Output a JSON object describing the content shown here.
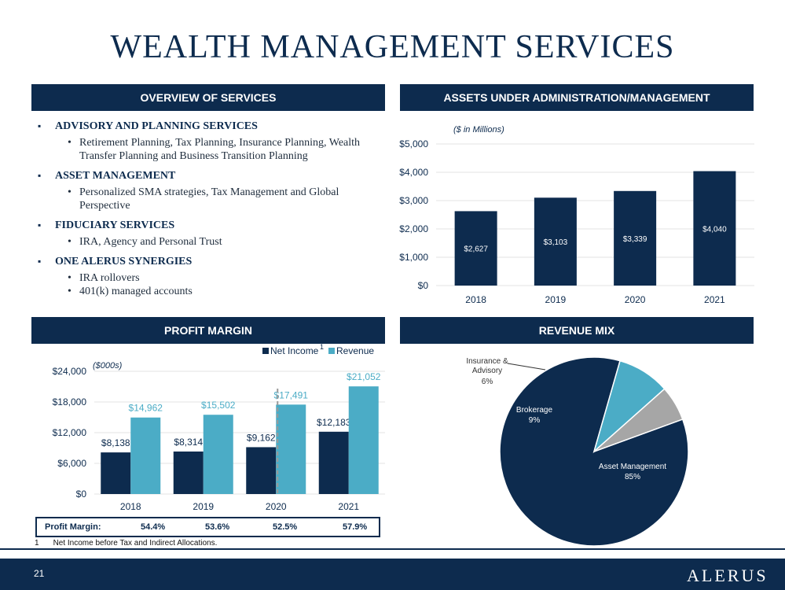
{
  "page": {
    "title": "WEALTH MANAGEMENT SERVICES",
    "page_number": "21",
    "logo": "ALERUS"
  },
  "headers": {
    "overview": "OVERVIEW OF SERVICES",
    "assets": "ASSETS UNDER ADMINISTRATION/MANAGEMENT",
    "profit": "PROFIT MARGIN",
    "revenue_mix": "REVENUE MIX"
  },
  "services": [
    {
      "heading": "ADVISORY AND PLANNING SERVICES",
      "items": [
        "Retirement Planning, Tax Planning, Insurance Planning, Wealth Transfer Planning and Business Transition Planning"
      ]
    },
    {
      "heading": "ASSET MANAGEMENT",
      "items": [
        "Personalized SMA strategies, Tax Management and Global Perspective"
      ]
    },
    {
      "heading": "FIDUCIARY SERVICES",
      "items": [
        "IRA, Agency and Personal Trust"
      ]
    },
    {
      "heading": "ONE ALERUS SYNERGIES",
      "items": [
        "IRA rollovers",
        "401(k) managed accounts"
      ]
    }
  ],
  "profit_margin_row": {
    "label": "Profit Margin:",
    "values": [
      "54.4%",
      "53.6%",
      "52.5%",
      "57.9%"
    ]
  },
  "footnote": {
    "marker": "1",
    "text": "Net Income before Tax and Indirect Allocations."
  },
  "colors": {
    "navy": "#0d2b4e",
    "teal": "#4bacc6",
    "gray": "#a6a6a6"
  },
  "chart_data": [
    {
      "type": "bar",
      "subtitle": "($ in Millions)",
      "categories": [
        "2018",
        "2019",
        "2020",
        "2021"
      ],
      "values": [
        2627,
        3103,
        3339,
        4040
      ],
      "data_labels": [
        "$2,627",
        "$3,103",
        "$3,339",
        "$4,040"
      ],
      "yticks": [
        "$0",
        "$1,000",
        "$2,000",
        "$3,000",
        "$4,000",
        "$5,000"
      ],
      "ylim": [
        0,
        5000
      ],
      "grid": true
    },
    {
      "type": "bar",
      "subtitle": "($000s)",
      "categories": [
        "2018",
        "2019",
        "2020",
        "2021"
      ],
      "series": [
        {
          "name": "Net Income",
          "values": [
            8138,
            8314,
            9162,
            12183
          ],
          "labels": [
            "$8,138",
            "$8,314",
            "$9,162",
            "$12,183"
          ]
        },
        {
          "name": "Revenue",
          "values": [
            14962,
            15502,
            17491,
            21052
          ],
          "labels": [
            "$14,962",
            "$15,502",
            "$17,491",
            "$21,052"
          ]
        }
      ],
      "legend_marker": "1",
      "yticks": [
        "$0",
        "$6,000",
        "$12,000",
        "$18,000",
        "$24,000"
      ],
      "ylim": [
        0,
        24000
      ],
      "grid": true
    },
    {
      "type": "pie",
      "slices": [
        {
          "name": "Asset Management",
          "label": "85%",
          "value": 85
        },
        {
          "name": "Brokerage",
          "label": "9%",
          "value": 9
        },
        {
          "name": "Insurance & Advisory",
          "label": "6%",
          "value": 6
        }
      ]
    }
  ]
}
